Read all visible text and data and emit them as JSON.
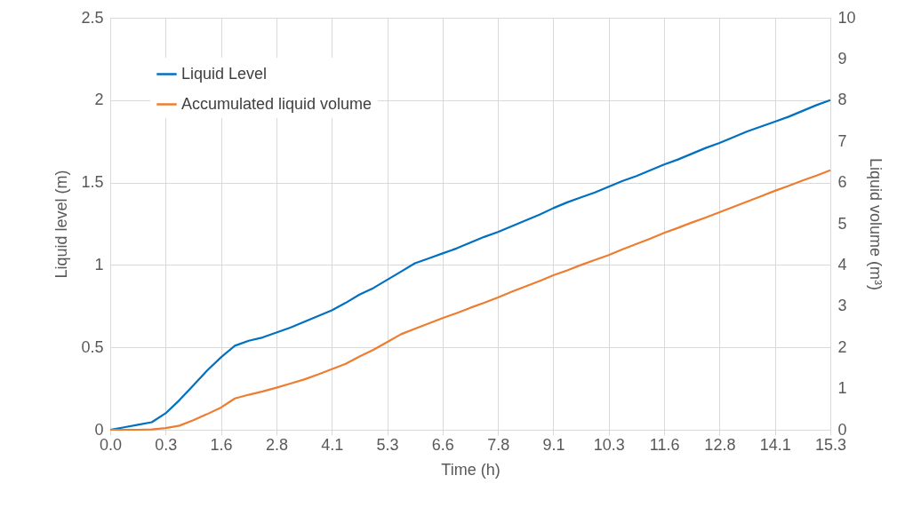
{
  "chart_data": {
    "type": "line",
    "xlabel": "Time (h)",
    "ylabel": "Liquid level (m)",
    "y2label": "Liquid volume (m³)",
    "categories": [
      "0.0",
      null,
      null,
      null,
      "0.3",
      null,
      null,
      null,
      "1.6",
      null,
      null,
      null,
      "2.8",
      null,
      null,
      null,
      "4.1",
      null,
      null,
      null,
      "5.3",
      null,
      null,
      null,
      "6.6",
      null,
      null,
      null,
      "7.8",
      null,
      null,
      null,
      "9.1",
      null,
      null,
      null,
      "10.3",
      null,
      null,
      null,
      "11.6",
      null,
      null,
      null,
      "12.8",
      null,
      null,
      null,
      "14.1",
      null,
      null,
      null,
      "15.3"
    ],
    "series": [
      {
        "name": "Liquid Level",
        "color": "#0070c0",
        "values": [
          0,
          0.015,
          0.03,
          0.046,
          0.1,
          0.18,
          0.27,
          0.36,
          0.44,
          0.51,
          0.54,
          0.56,
          0.59,
          0.62,
          0.655,
          0.69,
          0.725,
          0.77,
          0.82,
          0.86,
          0.91,
          0.96,
          1.01,
          1.04,
          1.07,
          1.1,
          1.135,
          1.17,
          1.2,
          1.235,
          1.27,
          1.305,
          1.345,
          1.38,
          1.41,
          1.44,
          1.475,
          1.51,
          1.54,
          1.575,
          1.61,
          1.64,
          1.675,
          1.71,
          1.74,
          1.775,
          1.81,
          1.84,
          1.87,
          1.9,
          1.935,
          1.97,
          2.0
        ]
      },
      {
        "name": "Accumulated liquid volume",
        "color": "#ed7d31",
        "axis": "y2",
        "values": [
          0,
          0,
          0,
          0.01,
          0.04,
          0.1,
          0.23,
          0.38,
          0.54,
          0.76,
          0.85,
          0.93,
          1.02,
          1.12,
          1.22,
          1.34,
          1.47,
          1.6,
          1.78,
          1.94,
          2.13,
          2.32,
          2.45,
          2.58,
          2.71,
          2.83,
          2.96,
          3.08,
          3.21,
          3.35,
          3.48,
          3.61,
          3.75,
          3.87,
          4.0,
          4.12,
          4.24,
          4.38,
          4.51,
          4.64,
          4.78,
          4.9,
          5.03,
          5.15,
          5.28,
          5.41,
          5.54,
          5.67,
          5.8,
          5.92,
          6.05,
          6.17,
          6.3
        ]
      }
    ],
    "ylim": [
      0,
      2.5
    ],
    "yticks": [
      0,
      0.5,
      1,
      1.5,
      2,
      2.5
    ],
    "y2lim": [
      0,
      10
    ],
    "y2ticks": [
      0,
      1,
      2,
      3,
      4,
      5,
      6,
      7,
      8,
      9,
      10
    ],
    "grid": true,
    "legend": "top left"
  }
}
